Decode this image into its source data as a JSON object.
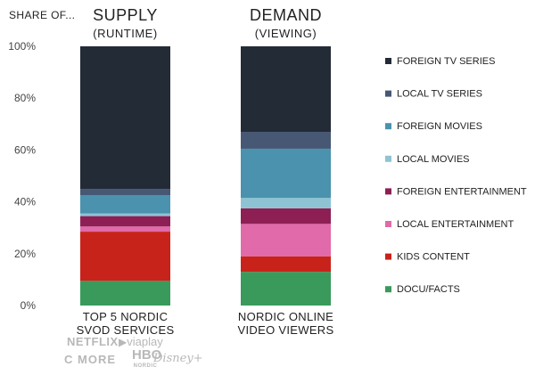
{
  "chart_data": {
    "type": "bar",
    "stacked": true,
    "prefix_label": "SHARE OF...",
    "categories": [
      {
        "header": "SUPPLY",
        "subheader": "(RUNTIME)",
        "label_lines": [
          "TOP 5 NORDIC",
          "SVOD SERVICES"
        ]
      },
      {
        "header": "DEMAND",
        "subheader": "(VIEWING)",
        "label_lines": [
          "NORDIC ONLINE",
          "VIDEO VIEWERS"
        ]
      }
    ],
    "ylim": [
      0,
      100
    ],
    "yticks": [
      "0%",
      "20%",
      "40%",
      "60%",
      "80%",
      "100%"
    ],
    "ytick_values": [
      0,
      20,
      40,
      60,
      80,
      100
    ],
    "grid": false,
    "legend_position": "right",
    "series": [
      {
        "name": "DOCU/FACTS",
        "color": "#3a9a5b",
        "values": [
          9.5,
          13
        ]
      },
      {
        "name": "KIDS CONTENT",
        "color": "#c8231a",
        "values": [
          19,
          6
        ]
      },
      {
        "name": "LOCAL ENTERTAINMENT",
        "color": "#e06aaa",
        "values": [
          2,
          12.5
        ]
      },
      {
        "name": "FOREIGN ENTERTAINMENT",
        "color": "#8e1f55",
        "values": [
          4,
          6
        ]
      },
      {
        "name": "LOCAL MOVIES",
        "color": "#8ec3d3",
        "values": [
          1,
          4
        ]
      },
      {
        "name": "FOREIGN MOVIES",
        "color": "#4a92ad",
        "values": [
          7,
          19
        ]
      },
      {
        "name": "LOCAL TV SERIES",
        "color": "#465874",
        "values": [
          2.5,
          6.5
        ]
      },
      {
        "name": "FOREIGN TV SERIES",
        "color": "#232b37",
        "values": [
          55,
          33
        ]
      }
    ]
  },
  "logos": {
    "netflix": "NETFLIX",
    "viaplay": "viaplay",
    "cmore": "C MORE",
    "hbo": "HBO",
    "hbo_sub": "NORDIC",
    "disney": "Disney+"
  }
}
